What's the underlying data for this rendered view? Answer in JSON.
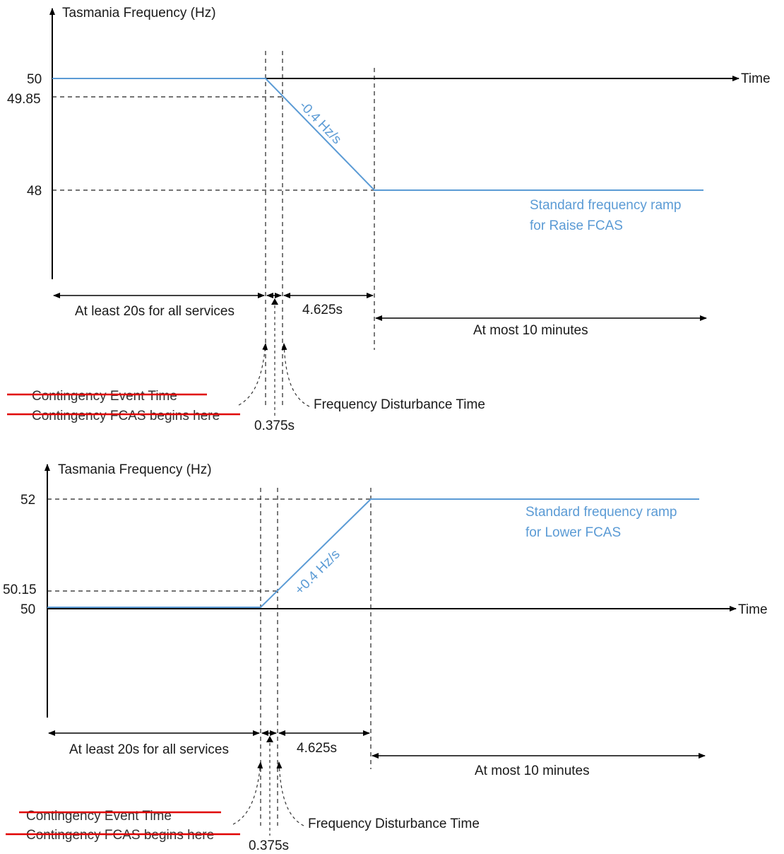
{
  "colors": {
    "ramp": "#5b9bd5",
    "axis": "#000000",
    "strike": "#e00000",
    "text": "#1a1a1a"
  },
  "top": {
    "y_axis_label": "Tasmania Frequency (Hz)",
    "x_axis_label": "Time",
    "ticks": {
      "t50": "50",
      "t4985": "49.85",
      "t48": "48"
    },
    "slope_label": "-0.4 Hz/s",
    "ramp_label_line1": "Standard frequency ramp",
    "ramp_label_line2": "for Raise FCAS",
    "span_left": "At least 20s for all services",
    "span_mid": "4.625s",
    "span_right": "At most 10 minutes",
    "struck_1": "Contingency Event Time",
    "struck_2": "Contingency FCAS begins here",
    "small_gap": "0.375s",
    "disturbance": "Frequency Disturbance Time"
  },
  "bottom": {
    "y_axis_label": "Tasmania Frequency (Hz)",
    "x_axis_label": "Time",
    "ticks": {
      "t52": "52",
      "t5015": "50.15",
      "t50": "50"
    },
    "slope_label": "+0.4 Hz/s",
    "ramp_label_line1": "Standard frequency ramp",
    "ramp_label_line2": "for Lower FCAS",
    "span_left": "At least 20s for all services",
    "span_mid": "4.625s",
    "span_right": "At most 10 minutes",
    "struck_1": "Contingency Event Time",
    "struck_2": "Contingency FCAS begins here",
    "small_gap": "0.375s",
    "disturbance": "Frequency Disturbance Time"
  }
}
